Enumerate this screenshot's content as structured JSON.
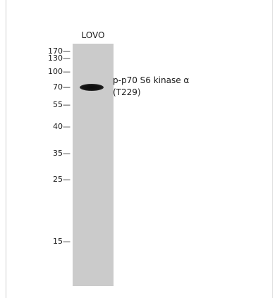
{
  "lane": {
    "label": "LOVO"
  },
  "markers": [
    {
      "label": "170—",
      "kda": 170
    },
    {
      "label": "130—",
      "kda": 130
    },
    {
      "label": "100—",
      "kda": 100
    },
    {
      "label": "70—",
      "kda": 70
    },
    {
      "label": "55—",
      "kda": 55
    },
    {
      "label": "40—",
      "kda": 40
    },
    {
      "label": "35—",
      "kda": 35
    },
    {
      "label": "25—",
      "kda": 25
    },
    {
      "label": "15—",
      "kda": 15
    }
  ],
  "band": {
    "label_line1": "p-p70 S6 kinase α",
    "label_line2": "(T229)",
    "color": "#111111"
  },
  "colors": {
    "lane": "#cbcbcb",
    "background": "#ffffff"
  }
}
